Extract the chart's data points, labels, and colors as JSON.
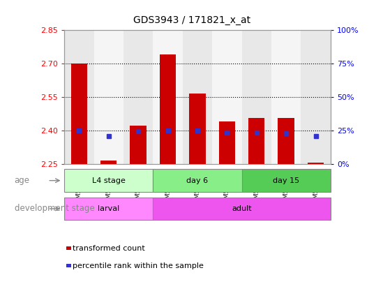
{
  "title": "GDS3943 / 171821_x_at",
  "samples": [
    "GSM542652",
    "GSM542653",
    "GSM542654",
    "GSM542655",
    "GSM542656",
    "GSM542657",
    "GSM542658",
    "GSM542659",
    "GSM542660"
  ],
  "bar_bottom": 2.25,
  "bar_tops": [
    2.7,
    2.265,
    2.42,
    2.74,
    2.565,
    2.44,
    2.455,
    2.455,
    2.255
  ],
  "blue_y": [
    2.4,
    2.375,
    2.395,
    2.4,
    2.4,
    2.39,
    2.39,
    2.385,
    2.375
  ],
  "ylim_left": [
    2.25,
    2.85
  ],
  "ylim_right": [
    0,
    100
  ],
  "yticks_left": [
    2.25,
    2.4,
    2.55,
    2.7,
    2.85
  ],
  "yticks_right": [
    0,
    25,
    50,
    75,
    100
  ],
  "ytick_right_labels": [
    "0%",
    "25%",
    "50%",
    "75%",
    "100%"
  ],
  "hlines": [
    2.4,
    2.55,
    2.7
  ],
  "bar_color": "#cc0000",
  "blue_color": "#3333cc",
  "age_groups": [
    {
      "label": "L4 stage",
      "start": 0,
      "end": 3,
      "color": "#ccffcc"
    },
    {
      "label": "day 6",
      "start": 3,
      "end": 6,
      "color": "#88ee88"
    },
    {
      "label": "day 15",
      "start": 6,
      "end": 9,
      "color": "#55cc55"
    }
  ],
  "dev_groups": [
    {
      "label": "larval",
      "start": 0,
      "end": 3,
      "color": "#ff88ff"
    },
    {
      "label": "adult",
      "start": 3,
      "end": 9,
      "color": "#ee55ee"
    }
  ],
  "age_label": "age",
  "dev_label": "development stage",
  "legend_items": [
    {
      "label": "transformed count",
      "color": "#cc0000"
    },
    {
      "label": "percentile rank within the sample",
      "color": "#3333cc"
    }
  ],
  "bar_width": 0.55
}
